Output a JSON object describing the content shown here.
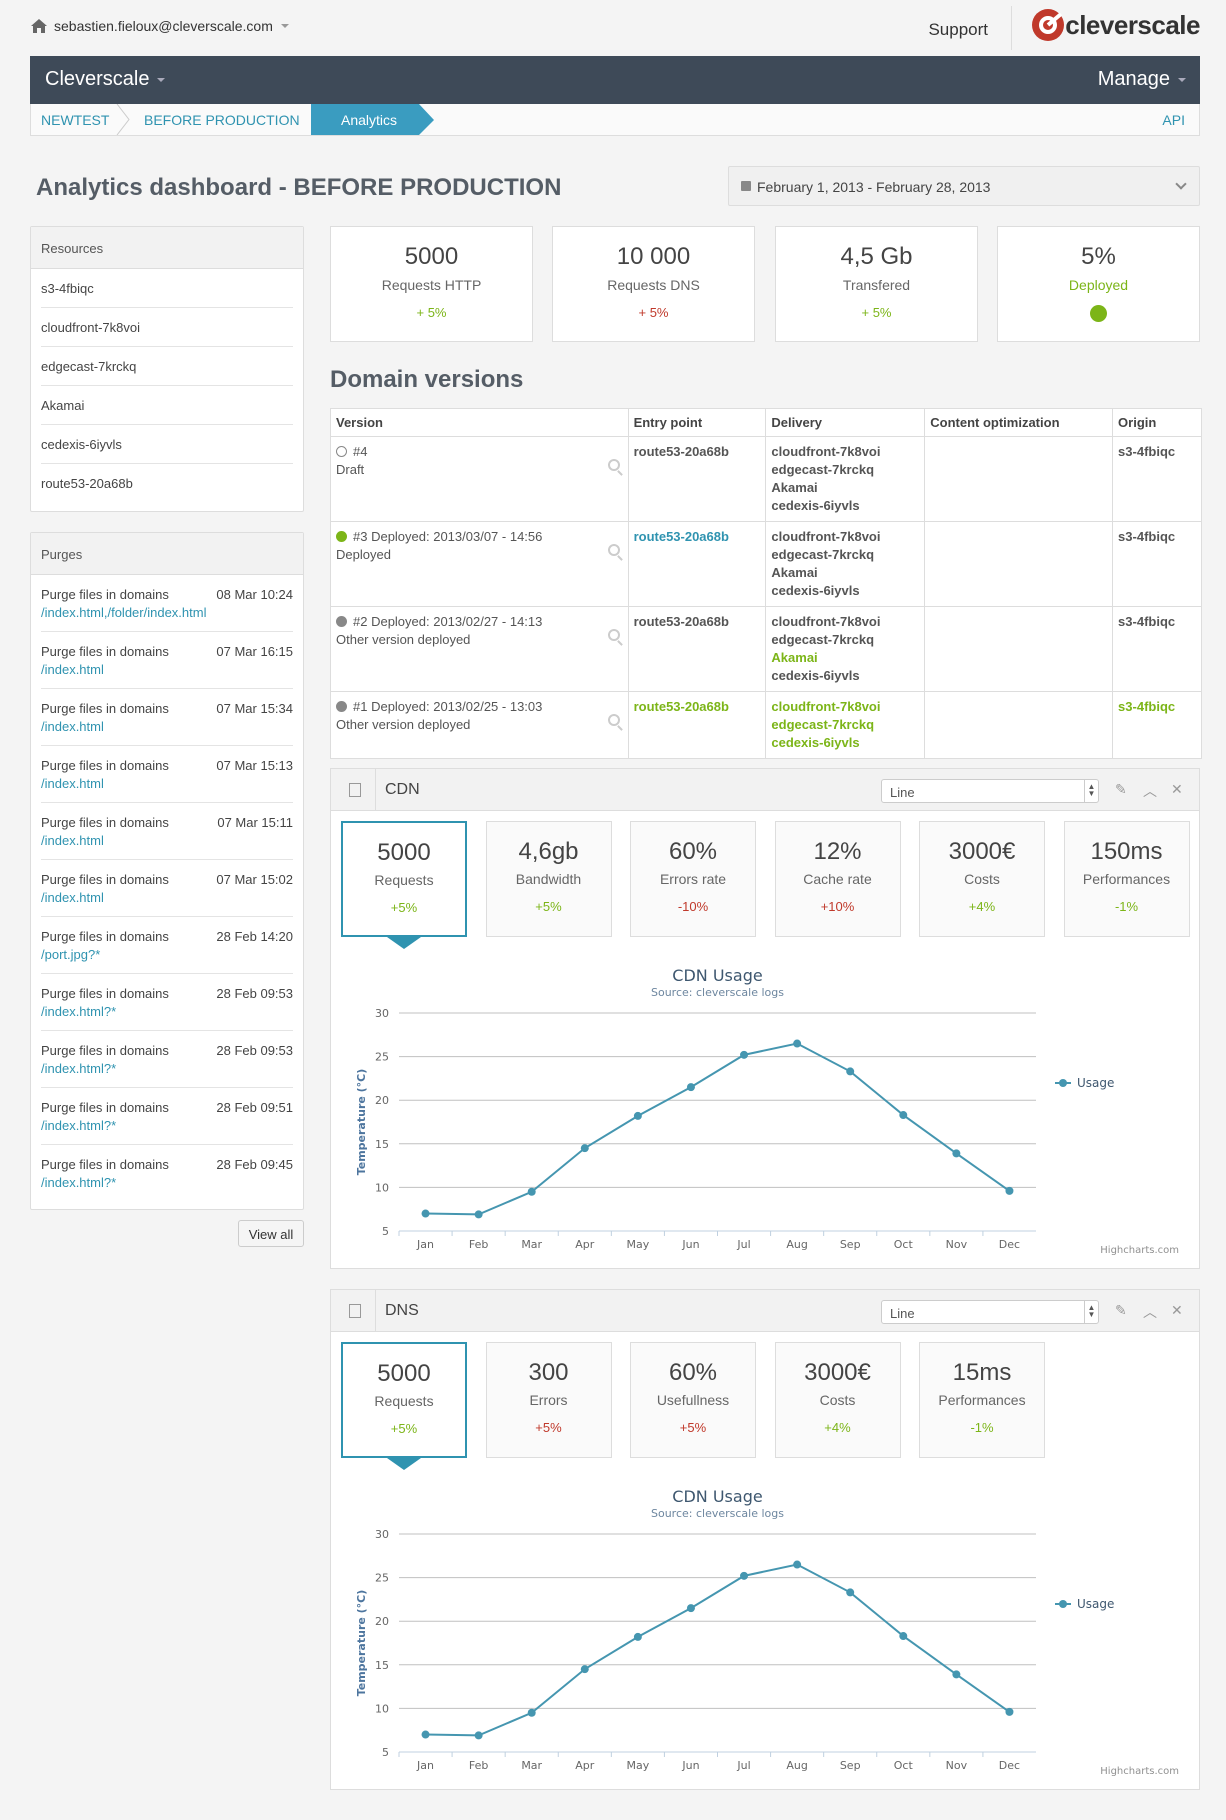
{
  "topbar": {
    "user_email": "sebastien.fieloux@cleverscale.com",
    "support_label": "Support",
    "logo_text": "cleverscale"
  },
  "nav": {
    "brand": "Cleverscale",
    "manage_label": "Manage"
  },
  "breadcrumb": {
    "items": [
      "NEWTEST",
      "BEFORE PRODUCTION",
      "Analytics"
    ],
    "api_label": "API"
  },
  "page": {
    "title": "Analytics dashboard - BEFORE PRODUCTION",
    "date_range": "February 1, 2013 - February 28, 2013"
  },
  "resources": {
    "title": "Resources",
    "items": [
      "s3-4fbiqc",
      "cloudfront-7k8voi",
      "edgecast-7krckq",
      "Akamai",
      "cedexis-6iyvls",
      "route53-20a68b"
    ]
  },
  "purges": {
    "title": "Purges",
    "items": [
      {
        "text": "Purge files in domains",
        "date": "08 Mar 10:24",
        "files": "/index.html,/folder/index.html"
      },
      {
        "text": "Purge files in domains",
        "date": "07 Mar 16:15",
        "files": "/index.html"
      },
      {
        "text": "Purge files in domains",
        "date": "07 Mar 15:34",
        "files": "/index.html"
      },
      {
        "text": "Purge files in domains",
        "date": "07 Mar 15:13",
        "files": "/index.html"
      },
      {
        "text": "Purge files in domains",
        "date": "07 Mar 15:11",
        "files": "/index.html"
      },
      {
        "text": "Purge files in domains",
        "date": "07 Mar 15:02",
        "files": "/index.html"
      },
      {
        "text": "Purge files in domains",
        "date": "28 Feb 14:20",
        "files": "/port.jpg?*"
      },
      {
        "text": "Purge files in domains",
        "date": "28 Feb 09:53",
        "files": "/index.html?*"
      },
      {
        "text": "Purge files in domains",
        "date": "28 Feb 09:53",
        "files": "/index.html?*"
      },
      {
        "text": "Purge files in domains",
        "date": "28 Feb 09:51",
        "files": "/index.html?*"
      },
      {
        "text": "Purge files in domains",
        "date": "28 Feb 09:45",
        "files": "/index.html?*"
      }
    ],
    "view_all": "View all"
  },
  "stats": [
    {
      "value": "5000",
      "label": "Requests HTTP",
      "delta": "+ 5%",
      "tone": "green"
    },
    {
      "value": "10 000",
      "label": "Requests DNS",
      "delta": "+ 5%",
      "tone": "red"
    },
    {
      "value": "4,5 Gb",
      "label": "Transfered",
      "delta": "+ 5%",
      "tone": "green"
    },
    {
      "value": "5%",
      "label": "Deployed",
      "status_color": "#7cb518"
    }
  ],
  "domain_versions": {
    "title": "Domain versions",
    "columns": [
      "Version",
      "Entry point",
      "Delivery",
      "Content optimization",
      "Origin"
    ],
    "rows": [
      {
        "status": "empty",
        "version": "#4",
        "sub": "Draft",
        "entry": "route53-20a68b",
        "entry_tone": "bold",
        "delivery": [
          "cloudfront-7k8voi",
          "edgecast-7krckq",
          "Akamai",
          "cedexis-6iyvls"
        ],
        "delivery_tones": [
          "bold",
          "bold",
          "bold",
          "bold"
        ],
        "optimization": "",
        "origin": "s3-4fbiqc",
        "origin_tone": "bold"
      },
      {
        "status": "green",
        "version": "#3 Deployed: 2013/03/07 - 14:56",
        "sub": "Deployed",
        "entry": "route53-20a68b",
        "entry_tone": "blue",
        "delivery": [
          "cloudfront-7k8voi",
          "edgecast-7krckq",
          "Akamai",
          "cedexis-6iyvls"
        ],
        "delivery_tones": [
          "bold",
          "bold",
          "bold",
          "bold"
        ],
        "optimization": "",
        "origin": "s3-4fbiqc",
        "origin_tone": "bold"
      },
      {
        "status": "gray",
        "version": "#2 Deployed: 2013/02/27 - 14:13",
        "sub": "Other version deployed",
        "entry": "route53-20a68b",
        "entry_tone": "bold",
        "delivery": [
          "cloudfront-7k8voi",
          "edgecast-7krckq",
          "Akamai",
          "cedexis-6iyvls"
        ],
        "delivery_tones": [
          "bold",
          "bold",
          "green",
          "bold"
        ],
        "optimization": "",
        "origin": "s3-4fbiqc",
        "origin_tone": "bold"
      },
      {
        "status": "gray",
        "version": "#1 Deployed: 2013/02/25 - 13:03",
        "sub": "Other version deployed",
        "entry": "route53-20a68b",
        "entry_tone": "green",
        "delivery": [
          "cloudfront-7k8voi",
          "edgecast-7krckq",
          "cedexis-6iyvls"
        ],
        "delivery_tones": [
          "green",
          "green",
          "green"
        ],
        "optimization": "",
        "origin": "s3-4fbiqc",
        "origin_tone": "green"
      }
    ]
  },
  "cdn_widget": {
    "title": "CDN",
    "chart_type_select": "Line",
    "kpis": [
      {
        "value": "5000",
        "label": "Requests",
        "delta": "+5%",
        "tone": "green"
      },
      {
        "value": "4,6gb",
        "label": "Bandwidth",
        "delta": "+5%",
        "tone": "green"
      },
      {
        "value": "60%",
        "label": "Errors rate",
        "delta": "-10%",
        "tone": "red"
      },
      {
        "value": "12%",
        "label": "Cache rate",
        "delta": "+10%",
        "tone": "red"
      },
      {
        "value": "3000€",
        "label": "Costs",
        "delta": "+4%",
        "tone": "green"
      },
      {
        "value": "150ms",
        "label": "Performances",
        "delta": "-1%",
        "tone": "green"
      }
    ]
  },
  "dns_widget": {
    "title": "DNS",
    "chart_type_select": "Line",
    "kpis": [
      {
        "value": "5000",
        "label": "Requests",
        "delta": "+5%",
        "tone": "green"
      },
      {
        "value": "300",
        "label": "Errors",
        "delta": "+5%",
        "tone": "red"
      },
      {
        "value": "60%",
        "label": "Usefullness",
        "delta": "+5%",
        "tone": "red"
      },
      {
        "value": "3000€",
        "label": "Costs",
        "delta": "+4%",
        "tone": "green"
      },
      {
        "value": "15ms",
        "label": "Performances",
        "delta": "-1%",
        "tone": "green"
      }
    ]
  },
  "chart_data": [
    {
      "type": "line",
      "title": "CDN Usage",
      "subtitle": "Source: cleverscale logs",
      "ylabel": "Temperature (°C)",
      "xlabel": "",
      "categories": [
        "Jan",
        "Feb",
        "Mar",
        "Apr",
        "May",
        "Jun",
        "Jul",
        "Aug",
        "Sep",
        "Oct",
        "Nov",
        "Dec"
      ],
      "series": [
        {
          "name": "Usage",
          "values": [
            7.0,
            6.9,
            9.5,
            14.5,
            18.2,
            21.5,
            25.2,
            26.5,
            23.3,
            18.3,
            13.9,
            9.6
          ],
          "color": "#4596b0"
        }
      ],
      "yticks": [
        5,
        10,
        15,
        20,
        25,
        30
      ],
      "ylim": [
        5,
        30
      ],
      "grid": true,
      "legend": "right",
      "credits": "Highcharts.com"
    },
    {
      "type": "line",
      "title": "CDN Usage",
      "subtitle": "Source: cleverscale logs",
      "ylabel": "Temperature (°C)",
      "xlabel": "",
      "categories": [
        "Jan",
        "Feb",
        "Mar",
        "Apr",
        "May",
        "Jun",
        "Jul",
        "Aug",
        "Sep",
        "Oct",
        "Nov",
        "Dec"
      ],
      "series": [
        {
          "name": "Usage",
          "values": [
            7.0,
            6.9,
            9.5,
            14.5,
            18.2,
            21.5,
            25.2,
            26.5,
            23.3,
            18.3,
            13.9,
            9.6
          ],
          "color": "#4596b0"
        }
      ],
      "yticks": [
        5,
        10,
        15,
        20,
        25,
        30
      ],
      "ylim": [
        5,
        30
      ],
      "grid": true,
      "legend": "right",
      "credits": "Highcharts.com"
    }
  ]
}
